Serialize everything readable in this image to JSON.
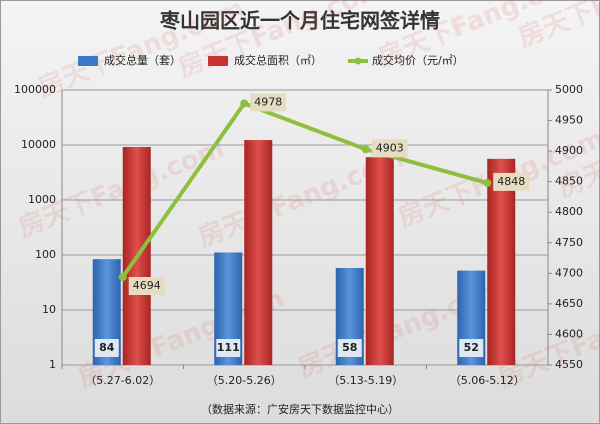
{
  "chart_data": {
    "type": "bar-line",
    "title": "枣山园区近一个月住宅网签详情",
    "watermark": "房天下Fang.com",
    "source": "（数据来源：广安房天下数据监控中心）",
    "categories": [
      "（5.27-6.02）",
      "（5.20-5.26）",
      "（5.13-5.19）",
      "（5.06-5.12）"
    ],
    "series": [
      {
        "name": "成交总量（套）",
        "color": "#3b78c8",
        "values": [
          84,
          111,
          58,
          52
        ]
      },
      {
        "name": "成交总面积（㎡）",
        "color": "#c83330",
        "values": [
          9200,
          12300,
          6000,
          5600
        ]
      },
      {
        "name": "成交均价（元/㎡）",
        "color": "#8fbf3f",
        "axis": "y2",
        "values": [
          4694,
          4978,
          4903,
          4848
        ]
      }
    ],
    "ylim": [
      1,
      100000
    ],
    "yticks": [
      1,
      10,
      100,
      1000,
      10000,
      100000
    ],
    "log_y": true,
    "y2lim": [
      4550,
      5000
    ],
    "y2ticks": [
      4550,
      4600,
      4650,
      4700,
      4750,
      4800,
      4850,
      4900,
      4950,
      5000
    ],
    "grid": true
  }
}
